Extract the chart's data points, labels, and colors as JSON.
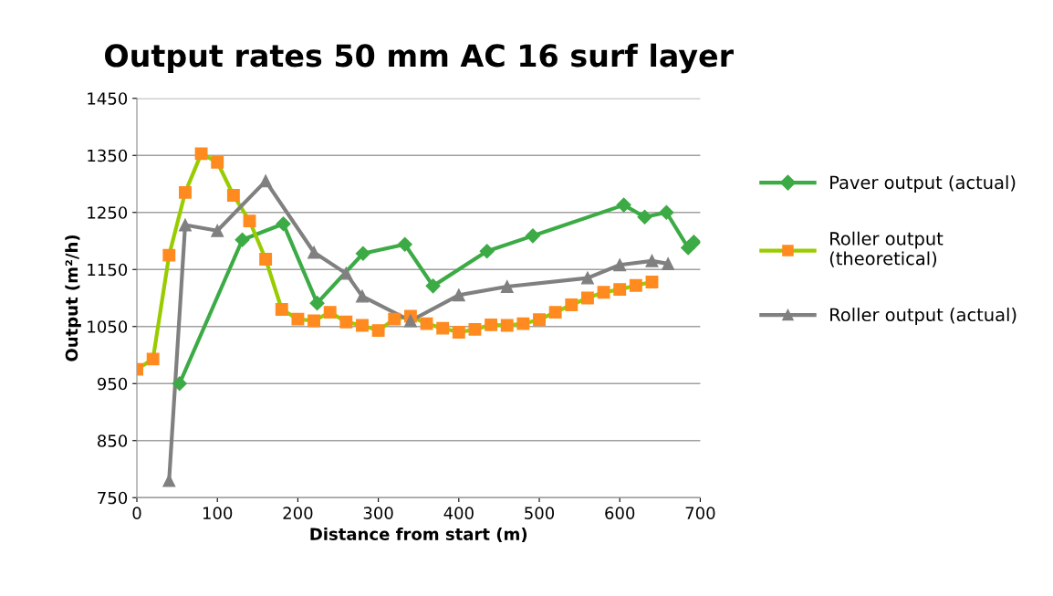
{
  "chart_data": {
    "type": "line",
    "title": "Output rates 50 mm AC 16 surf layer",
    "xlabel": "Distance from start (m)",
    "ylabel": "Output (m²/h)",
    "xlim": [
      0,
      700
    ],
    "xticks": [
      0,
      100,
      200,
      300,
      400,
      500,
      600,
      700
    ],
    "ylim": [
      750,
      1450
    ],
    "yticks": [
      750,
      850,
      950,
      1050,
      1150,
      1250,
      1350,
      1450
    ],
    "grid": "y",
    "legend": "right",
    "series": [
      {
        "name": "Paver output (actual)",
        "color": "#3cab45",
        "marker": "diamond",
        "x": [
          53,
          131,
          182,
          224,
          281,
          333,
          368,
          435,
          492,
          605,
          631,
          658,
          685,
          692
        ],
        "values": [
          950,
          1202,
          1230,
          1091,
          1178,
          1194,
          1121,
          1182,
          1209,
          1263,
          1242,
          1250,
          1188,
          1198
        ]
      },
      {
        "name": "Roller output\n(theoretical)",
        "color": "#99cc00",
        "colors": [
          "#ff8a1f",
          "#ff8a1f",
          "#ff8a1f",
          "#ff8a1f",
          "#ff8a1f",
          "#ff8a1f",
          "#ff8a1f",
          "#ff8a1f",
          "#ff8a1f",
          "#ff8a1f",
          "#ff8a1f",
          "#ff8a1f",
          "#ff8a1f",
          "#ff8a1f",
          "#ff8a1f",
          "#ff8a1f",
          "#ff8a1f",
          "#ff8a1f",
          "#ff8a1f",
          "#ff8a1f",
          "#ff8a1f",
          "#ff8a1f",
          "#ff8a1f",
          "#ff8a1f",
          "#ff8a1f",
          "#ff8a1f",
          "#ff8a1f",
          "#ff8a1f",
          "#ff8a1f",
          "#ff8a1f",
          "#ff8a1f",
          "#ff8a1f",
          "#ff8a1f"
        ],
        "marker": "square",
        "x": [
          0,
          20,
          40,
          60,
          80,
          100,
          120,
          140,
          160,
          180,
          200,
          220,
          240,
          260,
          280,
          300,
          320,
          340,
          360,
          380,
          400,
          420,
          440,
          460,
          480,
          500,
          520,
          540,
          560,
          580,
          600,
          620,
          640
        ],
        "values": [
          975,
          993,
          1175,
          1285,
          1353,
          1338,
          1280,
          1235,
          1168,
          1080,
          1063,
          1060,
          1075,
          1058,
          1052,
          1043,
          1063,
          1068,
          1055,
          1047,
          1040,
          1045,
          1053,
          1052,
          1055,
          1062,
          1075,
          1088,
          1100,
          1110,
          1115,
          1122,
          1128
        ]
      },
      {
        "name": "Roller output (actual)",
        "color": "#808080",
        "marker": "triangle",
        "x": [
          40,
          60,
          100,
          160,
          220,
          260,
          280,
          340,
          400,
          460,
          560,
          600,
          640,
          660
        ],
        "values": [
          780,
          1228,
          1218,
          1305,
          1180,
          1143,
          1103,
          1060,
          1105,
          1120,
          1135,
          1158,
          1165,
          1160
        ]
      }
    ]
  }
}
